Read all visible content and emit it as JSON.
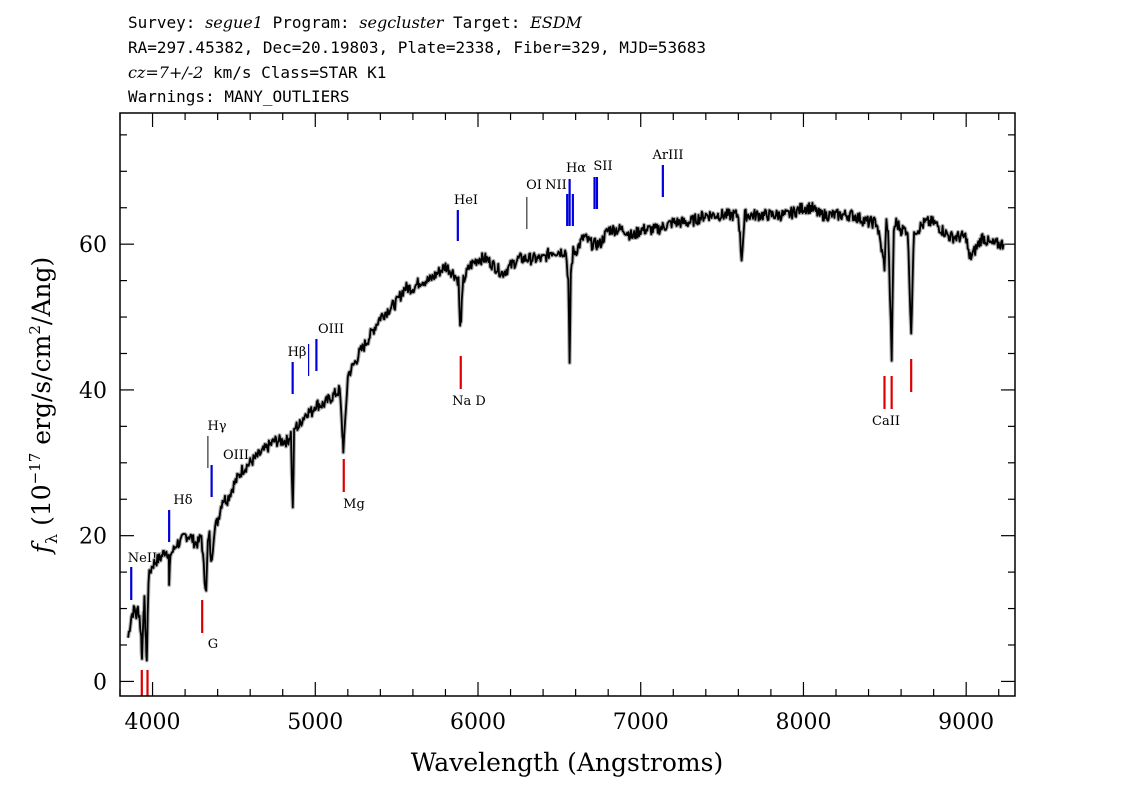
{
  "header": {
    "line1": {
      "survey_label": "Survey:",
      "survey": "segue1",
      "program_label": "Program:",
      "program": "segcluster",
      "target_label": "Target:",
      "target": "ESDM"
    },
    "line2": "RA=297.45382, Dec=20.19803, Plate=2338, Fiber=329, MJD=53683",
    "line3": {
      "cz": "cz=7+/-2",
      "rest": "km/s Class=STAR K1"
    },
    "line4": "Warnings: MANY_OUTLIERS"
  },
  "colors": {
    "emission": "#0000dd",
    "absorption": "#dd0000",
    "spectrum": "#000000",
    "error": "#b0b0b0"
  },
  "chart_data": {
    "type": "line",
    "xlabel": "Wavelength (Angstroms)",
    "ylabel": "f_λ (10^-17 erg/s/cm^2/Ang)",
    "xlim": [
      3800,
      9300
    ],
    "ylim": [
      -2,
      78
    ],
    "xticks": [
      4000,
      5000,
      6000,
      7000,
      8000,
      9000
    ],
    "yticks": [
      0,
      20,
      40,
      60
    ],
    "series": [
      {
        "x": [
          3850,
          3870,
          3890,
          3900,
          3910,
          3920,
          3930,
          3935,
          3945,
          3950,
          3955,
          3960,
          3965,
          3970,
          3975,
          3985,
          4000,
          4020,
          4050,
          4080,
          4100,
          4102,
          4110,
          4130,
          4150,
          4170,
          4200,
          4230,
          4260,
          4280,
          4300,
          4320,
          4330,
          4340,
          4350,
          4360,
          4380,
          4400,
          4430,
          4460,
          4500,
          4550,
          4600,
          4650,
          4700,
          4750,
          4800,
          4830,
          4850,
          4862,
          4870,
          4880,
          4900,
          4920,
          4950,
          4980,
          5000,
          5050,
          5100,
          5150,
          5167,
          5172,
          5183,
          5200,
          5250,
          5270,
          5300,
          5350,
          5400,
          5450,
          5500,
          5550,
          5600,
          5650,
          5700,
          5750,
          5800,
          5850,
          5880,
          5890,
          5896,
          5910,
          5950,
          6000,
          6050,
          6100,
          6150,
          6200,
          6250,
          6300,
          6350,
          6400,
          6450,
          6500,
          6540,
          6555,
          6563,
          6570,
          6585,
          6600,
          6650,
          6700,
          6750,
          6800,
          6850,
          6900,
          6950,
          7000,
          7100,
          7200,
          7300,
          7400,
          7500,
          7600,
          7620,
          7640,
          7700,
          7800,
          7900,
          8000,
          8050,
          8100,
          8200,
          8300,
          8400,
          8450,
          8498,
          8510,
          8520,
          8542,
          8555,
          8570,
          8600,
          8640,
          8662,
          8680,
          8700,
          8750,
          8800,
          8850,
          8900,
          8950,
          9000,
          9020,
          9050,
          9100,
          9150,
          9200,
          9230
        ],
        "y": [
          6,
          9,
          10,
          9,
          10,
          9,
          6,
          3,
          10,
          11,
          8,
          5,
          3,
          9,
          14,
          15,
          16,
          16.5,
          17,
          18,
          17.5,
          13,
          17.5,
          18,
          19,
          19,
          20,
          20,
          19,
          19,
          20,
          14,
          13,
          19,
          20,
          16,
          21,
          22,
          25,
          25,
          27,
          29,
          30,
          31,
          32,
          33,
          33,
          33,
          34,
          23.5,
          34,
          35,
          35,
          36,
          37,
          37,
          38,
          38,
          39,
          40,
          34,
          32,
          35,
          42,
          44,
          45,
          46,
          48,
          50,
          51,
          52,
          54,
          54,
          55,
          55,
          56,
          57,
          56,
          55,
          48.5,
          50,
          55,
          57,
          58,
          58,
          57,
          56,
          57,
          58,
          58,
          58,
          58,
          59,
          59,
          59,
          55,
          43,
          56,
          59,
          59,
          61,
          60,
          60,
          62,
          62,
          62,
          61,
          62,
          62,
          63,
          63,
          64,
          64,
          64,
          58,
          64,
          64,
          64,
          64,
          65,
          65,
          64,
          64,
          64,
          63,
          63,
          57,
          63,
          62,
          44.5,
          62,
          63,
          62,
          62,
          48,
          62,
          62,
          63,
          63,
          62,
          61,
          61,
          61,
          58,
          59,
          61,
          60,
          60,
          60
        ]
      }
    ],
    "emission_lines": [
      {
        "label": "NeIII",
        "x": 3869
      },
      {
        "label": "Hδ",
        "x": 4102
      },
      {
        "label": "Hγ",
        "x": 4340
      },
      {
        "label": "OIII",
        "x": 4363
      },
      {
        "label": "Hβ",
        "x": 4861
      },
      {
        "label": "OIII",
        "x": 4959
      },
      {
        "label": "OIII",
        "x": 5007
      },
      {
        "label": "HeI",
        "x": 5876
      },
      {
        "label": "OI",
        "x": 6300
      },
      {
        "label": "NII",
        "x": 6548
      },
      {
        "label": "Hα",
        "x": 6563
      },
      {
        "label": "NII",
        "x": 6583
      },
      {
        "label": "SII",
        "x": 6716
      },
      {
        "label": "SII",
        "x": 6731
      },
      {
        "label": "ArIII",
        "x": 7136
      }
    ],
    "absorption_lines": [
      {
        "label": "",
        "x": 3934
      },
      {
        "label": "",
        "x": 3969
      },
      {
        "label": "G",
        "x": 4305
      },
      {
        "label": "Mg",
        "x": 5175
      },
      {
        "label": "Na D",
        "x": 5894
      },
      {
        "label": "CaII",
        "x": 8498
      },
      {
        "label": "",
        "x": 8542
      },
      {
        "label": "",
        "x": 8662
      }
    ]
  }
}
